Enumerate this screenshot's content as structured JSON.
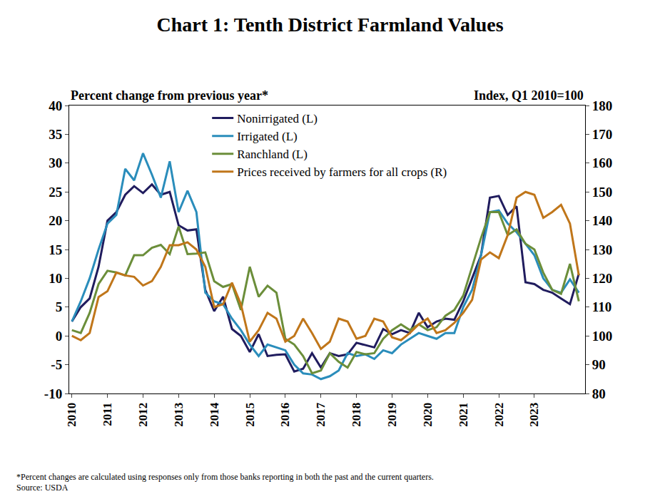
{
  "chart_data": {
    "type": "line",
    "title": "Chart 1: Tenth District Farmland Values",
    "ylabel": "Percent change from previous year*",
    "y2label": "Index, Q1 2010=100",
    "note": "*Percent changes are calculated using responses only from those banks reporting in both the past and the current quarters.",
    "source": "Source: USDA",
    "categories": [
      "2010",
      null,
      null,
      null,
      "2011",
      null,
      null,
      null,
      "2012",
      null,
      null,
      null,
      "2013",
      null,
      null,
      null,
      "2014",
      null,
      null,
      null,
      "2015",
      null,
      null,
      null,
      "2016",
      null,
      null,
      null,
      "2017",
      null,
      null,
      null,
      "2018",
      null,
      null,
      null,
      "2019",
      null,
      null,
      null,
      "2020",
      null,
      null,
      null,
      "2021",
      null,
      null,
      null,
      "2022",
      null,
      null,
      null,
      "2023",
      null,
      null,
      null,
      null,
      null
    ],
    "ylim": [
      -10,
      40
    ],
    "yticks": [
      -10,
      -5,
      0,
      5,
      10,
      15,
      20,
      25,
      30,
      35,
      40
    ],
    "y2lim": [
      80,
      180
    ],
    "y2ticks": [
      80,
      90,
      100,
      110,
      120,
      130,
      140,
      150,
      160,
      170,
      180
    ],
    "grid": false,
    "legend": "top",
    "series": [
      {
        "name": "Nonirrigated (L)",
        "color": "#201c5e",
        "values": [
          2.5,
          5,
          6.5,
          12,
          20,
          21.5,
          24.5,
          26,
          24.8,
          26.3,
          24.5,
          25,
          19.2,
          18.3,
          18.5,
          8,
          4.3,
          6.8,
          1.2,
          0,
          -2.8,
          0.3,
          -3.5,
          -3.3,
          -3.2,
          -6.2,
          -5.7,
          -3,
          -5.5,
          -3,
          -3.5,
          -3.2,
          -1.2,
          -1.6,
          -2,
          1.2,
          0.3,
          1,
          0.5,
          4,
          1.5,
          2.5,
          3,
          2.8,
          6,
          10,
          14,
          24,
          24.3,
          21,
          22.5,
          9.3,
          9,
          8,
          7.5,
          6.5,
          5.5,
          10.8
        ]
      },
      {
        "name": "Irrigated (L)",
        "color": "#2a8dbb",
        "values": [
          2.5,
          6,
          10,
          15,
          19.5,
          21,
          29,
          27,
          31.7,
          28,
          24,
          30.3,
          21.5,
          25.2,
          21.5,
          7.5,
          6,
          5.5,
          3,
          1,
          -1.5,
          -3.5,
          -1.5,
          -2,
          -2.5,
          -5,
          -6.5,
          -6.7,
          -7.5,
          -7,
          -6,
          -3,
          -3.5,
          -3.2,
          -4,
          -2.5,
          -3,
          -1.5,
          -0.5,
          0.5,
          0,
          -0.5,
          0.5,
          0.5,
          5,
          8,
          14,
          21.5,
          21.8,
          19.5,
          18,
          16,
          14,
          10,
          8,
          7.5,
          9.8,
          7.5
        ]
      },
      {
        "name": "Ranchland (L)",
        "color": "#6b8e3a",
        "values": [
          1,
          0.5,
          4,
          9,
          11.3,
          11,
          10.5,
          14,
          14,
          15.3,
          15.8,
          14.2,
          19,
          14.2,
          14.3,
          14.5,
          9.5,
          8.5,
          9,
          4.5,
          12,
          6.8,
          8.7,
          7.5,
          -0.5,
          -1.5,
          -3.5,
          -6.5,
          -6,
          -3,
          -4.5,
          -5.5,
          -2.8,
          -3.2,
          -3,
          -0.5,
          1,
          2,
          1,
          2,
          1,
          1.5,
          3.5,
          4.5,
          7,
          12,
          17,
          21.5,
          21.5,
          17.5,
          18.5,
          16,
          15,
          11,
          8,
          7.3,
          12.5,
          6
        ]
      },
      {
        "name": "Prices received by farmers for all crops (R)",
        "color": "#c0761a",
        "axis": "y2",
        "values": [
          100,
          98.5,
          101,
          113.5,
          115.5,
          122,
          121,
          120.5,
          117.5,
          119,
          124,
          131.5,
          131.5,
          132.5,
          130,
          124,
          110,
          111,
          118.5,
          111,
          98,
          102,
          108,
          106,
          98,
          100,
          106,
          101,
          95.5,
          98,
          106,
          105,
          99,
          100,
          106,
          105,
          99.5,
          98.5,
          101,
          104,
          106,
          101,
          102,
          104.5,
          108,
          112.5,
          126.5,
          129,
          127,
          135,
          148,
          150,
          149,
          141,
          143,
          145.5,
          139,
          121
        ]
      }
    ]
  }
}
